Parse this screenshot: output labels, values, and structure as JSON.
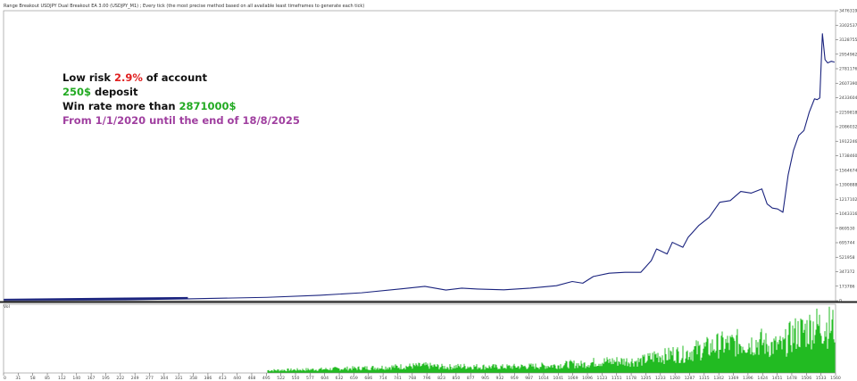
{
  "chart_data": {
    "type": "line",
    "header": "Range Breakout USDJPY Dual Breakout EA 3.00 (USDJPY_M1) ; Every tick (the most precise method based on all available least timeframes to generate each tick)",
    "annotations": [
      {
        "parts": [
          {
            "text": "Low risk ",
            "color": "#111111"
          },
          {
            "text": "2.9%",
            "color": "#e02020"
          },
          {
            "text": " of account",
            "color": "#111111"
          }
        ]
      },
      {
        "parts": [
          {
            "text": "250$",
            "color": "#22aa22"
          },
          {
            "text": " deposit",
            "color": "#111111"
          }
        ]
      },
      {
        "parts": [
          {
            "text": "Win rate more than ",
            "color": "#111111"
          },
          {
            "text": "2871000$",
            "color": "#22aa22"
          }
        ]
      },
      {
        "parts": [
          {
            "text": "From 1/1/2020 until the end of 18/8/2025",
            "color": "#a040a0"
          }
        ]
      }
    ],
    "y_ticks": [
      "3476319",
      "3302537",
      "3128755",
      "2954962",
      "2781176",
      "2607390",
      "2433604",
      "2259818",
      "2086032",
      "1912246",
      "1738460",
      "1564674",
      "1390888",
      "1217102",
      "1043316",
      "869530",
      "695744",
      "521958",
      "347372",
      "173786",
      "0"
    ],
    "ylim": [
      0,
      3476319
    ],
    "x_ticks": [
      "0",
      "31",
      "58",
      "85",
      "112",
      "140",
      "167",
      "195",
      "222",
      "249",
      "277",
      "304",
      "331",
      "358",
      "386",
      "413",
      "440",
      "468",
      "495",
      "522",
      "550",
      "577",
      "604",
      "632",
      "659",
      "686",
      "714",
      "741",
      "768",
      "796",
      "823",
      "850",
      "877",
      "905",
      "932",
      "959",
      "987",
      "1014",
      "1041",
      "1069",
      "1096",
      "1123",
      "1151",
      "1178",
      "1205",
      "1233",
      "1260",
      "1287",
      "1315",
      "1342",
      "1369",
      "1396",
      "1424",
      "1451",
      "1478",
      "1506",
      "1533",
      "1560"
    ],
    "xlim": [
      0,
      1580
    ],
    "volume_label": "Vol",
    "line_color": "#1a237e",
    "volume_color": "#22bb22",
    "series": [
      {
        "x": [
          0,
          50,
          150,
          250,
          350,
          500,
          600,
          680,
          760,
          800,
          840,
          870,
          900,
          950,
          1000,
          1050,
          1080,
          1100,
          1120,
          1150,
          1180,
          1210,
          1230,
          1240,
          1260,
          1270,
          1290,
          1300,
          1320,
          1340,
          1360,
          1380,
          1400,
          1420,
          1440,
          1450,
          1460,
          1470,
          1480,
          1490,
          1500,
          1510,
          1520,
          1530,
          1540,
          1545,
          1550,
          1555,
          1560,
          1565,
          1572,
          1578
        ],
        "y": [
          250,
          2000,
          6000,
          12000,
          22000,
          40000,
          65000,
          95000,
          145000,
          172000,
          128000,
          150000,
          140000,
          130000,
          150000,
          180000,
          230000,
          210000,
          290000,
          330000,
          340000,
          340000,
          480000,
          620000,
          560000,
          700000,
          640000,
          760000,
          900000,
          1000000,
          1180000,
          1200000,
          1310000,
          1290000,
          1340000,
          1160000,
          1110000,
          1100000,
          1060000,
          1510000,
          1800000,
          1980000,
          2040000,
          2260000,
          2420000,
          2410000,
          2430000,
          3200000,
          2890000,
          2850000,
          2870000,
          2860000
        ]
      }
    ]
  }
}
